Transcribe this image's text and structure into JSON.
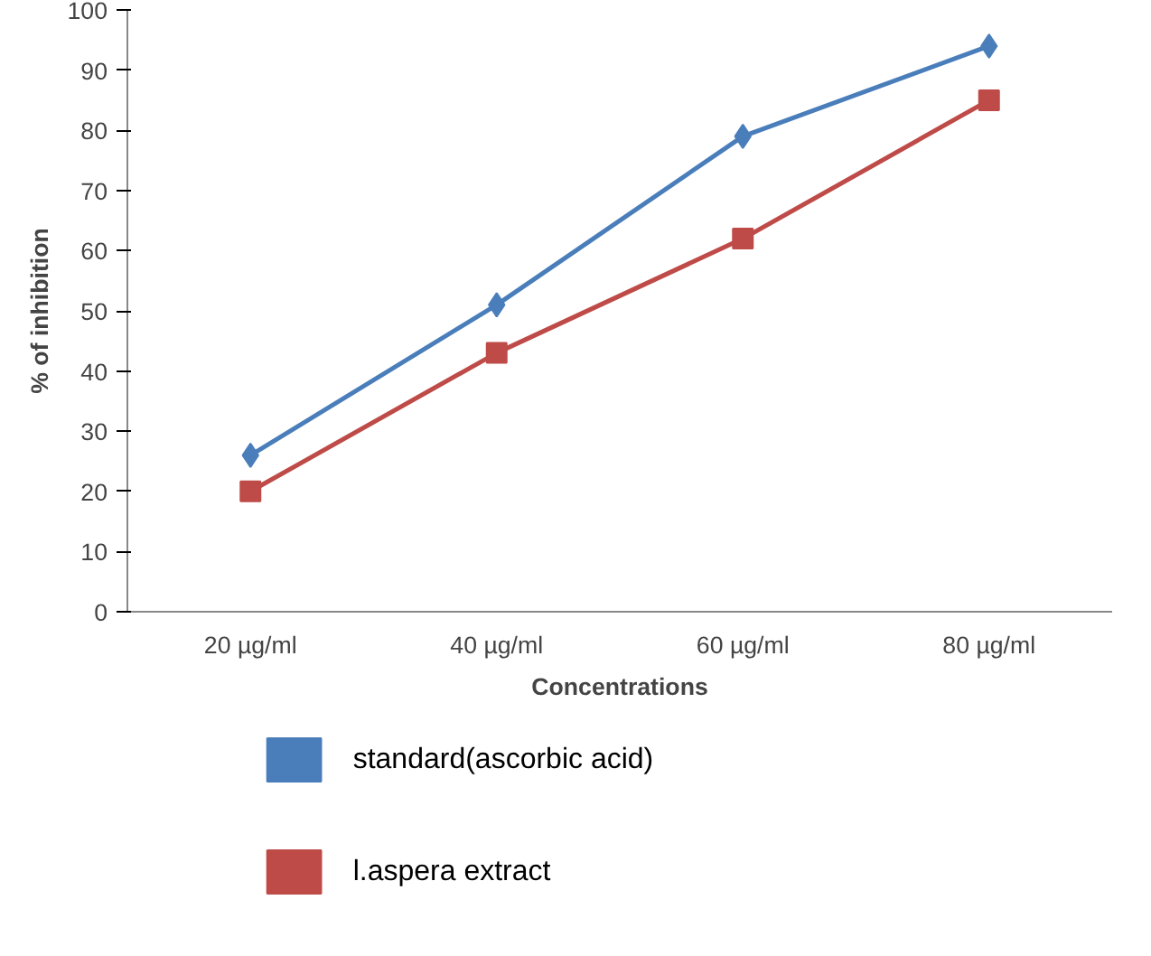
{
  "chart_data": {
    "type": "line",
    "xlabel": "Concentrations",
    "ylabel": "% of inhibition",
    "categories": [
      "20 µg/ml",
      "40 µg/ml",
      "60 µg/ml",
      "80 µg/ml"
    ],
    "ylim": [
      0,
      100
    ],
    "yticks": [
      0,
      10,
      20,
      30,
      40,
      50,
      60,
      70,
      80,
      90,
      100
    ],
    "grid": false,
    "legend": "bottom",
    "series": [
      {
        "name": "standard(ascorbic acid)",
        "color": "#4a7ebb",
        "marker": "diamond",
        "values": [
          26,
          51,
          79,
          94
        ]
      },
      {
        "name": "l.aspera extract",
        "color": "#be4b48",
        "marker": "square",
        "values": [
          20,
          43,
          62,
          85
        ]
      }
    ]
  }
}
